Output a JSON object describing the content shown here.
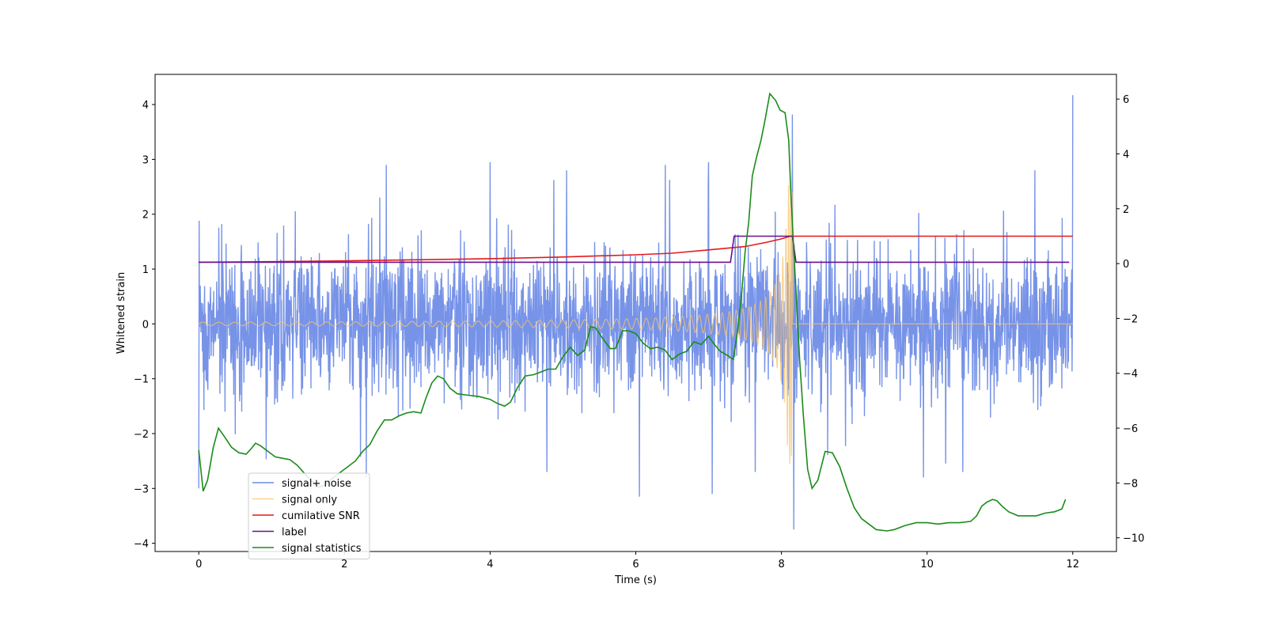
{
  "chart_data": {
    "type": "line",
    "xlabel": "Time (s)",
    "ylabel": "Whitened strain",
    "y2label": "",
    "xlim": [
      -0.6,
      12.6
    ],
    "ylim": [
      -4.15,
      4.55
    ],
    "y2lim": [
      -10.5,
      6.9
    ],
    "x_ticks": [
      0,
      2,
      4,
      6,
      8,
      10,
      12
    ],
    "y_ticks": [
      -4,
      -3,
      -2,
      -1,
      0,
      1,
      2,
      3,
      4
    ],
    "y2_ticks": [
      -10,
      -8,
      -6,
      -4,
      -2,
      0,
      2,
      4,
      6
    ],
    "grid": false,
    "legend_position": "lower-left",
    "series": [
      {
        "name": "signal+ noise",
        "axis": "left",
        "color": "#6b8ae6",
        "kind": "noise-band",
        "x_range": [
          0,
          12
        ],
        "typical_amplitude": 1.5,
        "spikes": [
          [
            0.0,
            -3.0
          ],
          [
            4.0,
            2.95
          ],
          [
            6.05,
            -3.15
          ],
          [
            7.05,
            -3.1
          ],
          [
            7.0,
            2.95
          ],
          [
            8.15,
            3.82
          ],
          [
            8.17,
            -3.75
          ],
          [
            11.48,
            2.8
          ],
          [
            12.0,
            4.17
          ],
          [
            5.05,
            2.8
          ],
          [
            2.3,
            -2.8
          ],
          [
            9.95,
            -2.8
          ]
        ]
      },
      {
        "name": "signal only",
        "axis": "left",
        "color": "#f5c26b",
        "kind": "chirp",
        "x_range": [
          0,
          12
        ],
        "merger_time": 8.15,
        "peak_amplitude": 2.6,
        "base_amplitude": 0.03
      },
      {
        "name": "cumilative SNR",
        "axis": "right",
        "color": "#e31a1c",
        "points": [
          [
            0,
            0.05
          ],
          [
            1,
            0.07
          ],
          [
            2,
            0.1
          ],
          [
            3,
            0.14
          ],
          [
            4,
            0.18
          ],
          [
            5,
            0.24
          ],
          [
            6,
            0.32
          ],
          [
            6.5,
            0.38
          ],
          [
            7,
            0.5
          ],
          [
            7.5,
            0.62
          ],
          [
            7.8,
            0.78
          ],
          [
            8.0,
            0.9
          ],
          [
            8.12,
            1.0
          ],
          [
            8.2,
            1.0
          ],
          [
            12,
            1.0
          ]
        ]
      },
      {
        "name": "label",
        "axis": "right",
        "color": "#6a0f8e",
        "points": [
          [
            0,
            0.05
          ],
          [
            7.3,
            0.05
          ],
          [
            7.35,
            1.0
          ],
          [
            8.15,
            1.0
          ],
          [
            8.2,
            0.05
          ],
          [
            11.95,
            0.05
          ]
        ]
      },
      {
        "name": "signal statistics",
        "axis": "right",
        "color": "#1a8c1a",
        "points": [
          [
            0,
            -6.8
          ],
          [
            0.06,
            -8.3
          ],
          [
            0.12,
            -7.9
          ],
          [
            0.2,
            -6.7
          ],
          [
            0.27,
            -6.0
          ],
          [
            0.35,
            -6.3
          ],
          [
            0.45,
            -6.7
          ],
          [
            0.55,
            -6.9
          ],
          [
            0.65,
            -6.95
          ],
          [
            0.72,
            -6.75
          ],
          [
            0.78,
            -6.55
          ],
          [
            0.85,
            -6.65
          ],
          [
            0.95,
            -6.85
          ],
          [
            1.05,
            -7.05
          ],
          [
            1.15,
            -7.1
          ],
          [
            1.25,
            -7.15
          ],
          [
            1.35,
            -7.35
          ],
          [
            1.45,
            -7.65
          ],
          [
            1.55,
            -7.95
          ],
          [
            1.65,
            -8.15
          ],
          [
            1.75,
            -8.05
          ],
          [
            1.85,
            -7.8
          ],
          [
            1.95,
            -7.6
          ],
          [
            2.05,
            -7.4
          ],
          [
            2.15,
            -7.2
          ],
          [
            2.25,
            -6.85
          ],
          [
            2.35,
            -6.6
          ],
          [
            2.45,
            -6.1
          ],
          [
            2.55,
            -5.7
          ],
          [
            2.65,
            -5.7
          ],
          [
            2.75,
            -5.55
          ],
          [
            2.85,
            -5.45
          ],
          [
            2.95,
            -5.4
          ],
          [
            3.05,
            -5.45
          ],
          [
            3.12,
            -4.9
          ],
          [
            3.2,
            -4.35
          ],
          [
            3.28,
            -4.1
          ],
          [
            3.36,
            -4.2
          ],
          [
            3.45,
            -4.55
          ],
          [
            3.55,
            -4.75
          ],
          [
            3.7,
            -4.8
          ],
          [
            3.85,
            -4.85
          ],
          [
            4.0,
            -4.95
          ],
          [
            4.1,
            -5.1
          ],
          [
            4.2,
            -5.2
          ],
          [
            4.28,
            -5.05
          ],
          [
            4.38,
            -4.5
          ],
          [
            4.48,
            -4.1
          ],
          [
            4.6,
            -4.05
          ],
          [
            4.7,
            -3.95
          ],
          [
            4.8,
            -3.85
          ],
          [
            4.9,
            -3.85
          ],
          [
            5.0,
            -3.4
          ],
          [
            5.1,
            -3.05
          ],
          [
            5.2,
            -3.35
          ],
          [
            5.3,
            -3.15
          ],
          [
            5.38,
            -2.3
          ],
          [
            5.45,
            -2.35
          ],
          [
            5.55,
            -2.75
          ],
          [
            5.65,
            -3.1
          ],
          [
            5.72,
            -3.1
          ],
          [
            5.82,
            -2.45
          ],
          [
            5.9,
            -2.45
          ],
          [
            6.0,
            -2.55
          ],
          [
            6.1,
            -2.9
          ],
          [
            6.2,
            -3.1
          ],
          [
            6.3,
            -3.05
          ],
          [
            6.4,
            -3.15
          ],
          [
            6.5,
            -3.5
          ],
          [
            6.6,
            -3.3
          ],
          [
            6.7,
            -3.2
          ],
          [
            6.8,
            -2.85
          ],
          [
            6.9,
            -2.95
          ],
          [
            7.0,
            -2.65
          ],
          [
            7.08,
            -2.95
          ],
          [
            7.16,
            -3.2
          ],
          [
            7.26,
            -3.35
          ],
          [
            7.34,
            -3.5
          ],
          [
            7.4,
            -2.4
          ],
          [
            7.45,
            -1.2
          ],
          [
            7.5,
            0.4
          ],
          [
            7.55,
            1.5
          ],
          [
            7.6,
            3.2
          ],
          [
            7.66,
            3.9
          ],
          [
            7.72,
            4.5
          ],
          [
            7.78,
            5.3
          ],
          [
            7.84,
            6.2
          ],
          [
            7.92,
            5.95
          ],
          [
            7.98,
            5.6
          ],
          [
            8.05,
            5.5
          ],
          [
            8.1,
            4.5
          ],
          [
            8.13,
            2.5
          ],
          [
            8.17,
            0.5
          ],
          [
            8.21,
            -1.5
          ],
          [
            8.25,
            -3.5
          ],
          [
            8.3,
            -5.5
          ],
          [
            8.36,
            -7.5
          ],
          [
            8.42,
            -8.2
          ],
          [
            8.5,
            -7.9
          ],
          [
            8.6,
            -6.85
          ],
          [
            8.7,
            -6.9
          ],
          [
            8.8,
            -7.4
          ],
          [
            8.9,
            -8.2
          ],
          [
            9.0,
            -8.9
          ],
          [
            9.1,
            -9.3
          ],
          [
            9.2,
            -9.5
          ],
          [
            9.3,
            -9.7
          ],
          [
            9.45,
            -9.75
          ],
          [
            9.55,
            -9.7
          ],
          [
            9.7,
            -9.55
          ],
          [
            9.85,
            -9.45
          ],
          [
            10.0,
            -9.45
          ],
          [
            10.15,
            -9.5
          ],
          [
            10.3,
            -9.45
          ],
          [
            10.45,
            -9.45
          ],
          [
            10.6,
            -9.4
          ],
          [
            10.68,
            -9.2
          ],
          [
            10.75,
            -8.85
          ],
          [
            10.82,
            -8.7
          ],
          [
            10.9,
            -8.6
          ],
          [
            10.96,
            -8.65
          ],
          [
            11.03,
            -8.85
          ],
          [
            11.12,
            -9.05
          ],
          [
            11.25,
            -9.2
          ],
          [
            11.38,
            -9.2
          ],
          [
            11.5,
            -9.2
          ],
          [
            11.62,
            -9.1
          ],
          [
            11.75,
            -9.05
          ],
          [
            11.85,
            -8.95
          ],
          [
            11.9,
            -8.6
          ]
        ]
      }
    ]
  }
}
